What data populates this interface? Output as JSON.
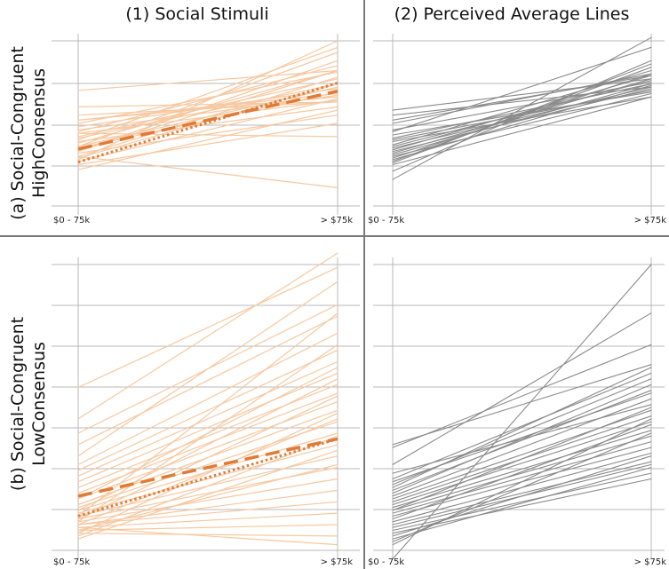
{
  "column_titles": [
    "(1) Social Stimuli",
    "(2) Perceived Average Lines"
  ],
  "row_titles": [
    [
      "(a) Social-Congruent",
      "HighConsensus"
    ],
    [
      "(b) Social-Congruent",
      "LowConsensus"
    ]
  ],
  "x_tick_labels": [
    "$0 - 75k",
    "> $75k"
  ],
  "colors": {
    "stimulus_line": "#f6c8a0",
    "mean_line": "#e07b36",
    "perceived_line": "#8a8a8a",
    "grid": "#b8b8b8",
    "divider": "#7a7a7a"
  },
  "chart_data": [
    {
      "panel": "a1",
      "type": "line",
      "x": [
        "$0 - 75k",
        "> $75k"
      ],
      "ylim": [
        0,
        1
      ],
      "lines": [
        [
          0.52,
          0.66
        ],
        [
          0.45,
          0.85
        ],
        [
          0.33,
          0.88
        ],
        [
          0.38,
          0.82
        ],
        [
          0.41,
          0.74
        ],
        [
          0.48,
          0.71
        ],
        [
          0.55,
          0.63
        ],
        [
          0.6,
          0.63
        ],
        [
          0.3,
          0.78
        ],
        [
          0.35,
          0.69
        ],
        [
          0.42,
          0.77
        ],
        [
          0.5,
          0.81
        ],
        [
          0.27,
          0.65
        ],
        [
          0.39,
          0.6
        ],
        [
          0.46,
          0.67
        ],
        [
          0.36,
          0.72
        ],
        [
          0.44,
          0.64
        ],
        [
          0.29,
          0.74
        ],
        [
          0.7,
          0.82
        ],
        [
          0.32,
          0.55
        ],
        [
          0.28,
          1.0
        ],
        [
          0.36,
          0.93
        ],
        [
          0.4,
          0.96
        ],
        [
          0.22,
          0.58
        ],
        [
          0.44,
          0.42
        ],
        [
          0.3,
          0.11
        ],
        [
          0.25,
          0.5
        ],
        [
          0.52,
          0.68
        ],
        [
          0.33,
          0.82
        ]
      ],
      "mean_dashed": [
        0.345,
        0.695
      ],
      "mean_dotted": [
        0.265,
        0.745
      ]
    },
    {
      "panel": "a2",
      "type": "line",
      "x": [
        "$0 - 75k",
        "> $75k"
      ],
      "ylim": [
        0,
        1
      ],
      "lines": [
        [
          0.58,
          0.77
        ],
        [
          0.55,
          0.72
        ],
        [
          0.5,
          0.8
        ],
        [
          0.46,
          0.75
        ],
        [
          0.43,
          0.69
        ],
        [
          0.41,
          0.74
        ],
        [
          0.39,
          0.66
        ],
        [
          0.37,
          0.82
        ],
        [
          0.36,
          0.76
        ],
        [
          0.35,
          0.72
        ],
        [
          0.34,
          0.79
        ],
        [
          0.33,
          0.71
        ],
        [
          0.32,
          0.77
        ],
        [
          0.31,
          0.74
        ],
        [
          0.3,
          0.68
        ],
        [
          0.29,
          0.8
        ],
        [
          0.28,
          0.73
        ],
        [
          0.27,
          0.84
        ],
        [
          0.26,
          0.86
        ],
        [
          0.25,
          0.66
        ],
        [
          0.21,
          0.88
        ],
        [
          0.45,
          0.96
        ],
        [
          0.16,
          1.02
        ],
        [
          0.52,
          0.79
        ],
        [
          0.4,
          0.7
        ]
      ]
    },
    {
      "panel": "b1",
      "type": "line",
      "x": [
        "$0 - 75k",
        "> $75k"
      ],
      "ylim": [
        0,
        1
      ],
      "lines": [
        [
          0.57,
          0.99
        ],
        [
          0.46,
          1.04
        ],
        [
          0.41,
          0.86
        ],
        [
          0.37,
          0.82
        ],
        [
          0.33,
          0.94
        ],
        [
          0.3,
          0.76
        ],
        [
          0.28,
          0.7
        ],
        [
          0.26,
          0.66
        ],
        [
          0.24,
          0.62
        ],
        [
          0.22,
          0.58
        ],
        [
          0.2,
          0.55
        ],
        [
          0.18,
          0.52
        ],
        [
          0.16,
          0.49
        ],
        [
          0.15,
          0.45
        ],
        [
          0.14,
          0.41
        ],
        [
          0.13,
          0.37
        ],
        [
          0.12,
          0.33
        ],
        [
          0.11,
          0.29
        ],
        [
          0.1,
          0.25
        ],
        [
          0.09,
          0.21
        ],
        [
          0.09,
          0.17
        ],
        [
          0.08,
          0.13
        ],
        [
          0.07,
          0.09
        ],
        [
          0.06,
          0.05
        ],
        [
          0.08,
          0.02
        ],
        [
          0.1,
          0.72
        ],
        [
          0.12,
          0.83
        ],
        [
          0.05,
          0.4
        ],
        [
          0.07,
          0.3
        ],
        [
          0.09,
          0.46
        ],
        [
          0.11,
          0.54
        ],
        [
          0.14,
          0.6
        ],
        [
          0.18,
          0.64
        ],
        [
          0.04,
          0.35
        ],
        [
          0.06,
          0.48
        ]
      ],
      "mean_dashed": [
        0.19,
        0.39
      ],
      "mean_dotted": [
        0.12,
        0.39
      ]
    },
    {
      "panel": "b2",
      "type": "line",
      "x": [
        "$0 - 75k",
        "> $75k"
      ],
      "ylim": [
        0,
        1
      ],
      "lines": [
        [
          0.37,
          0.65
        ],
        [
          0.36,
          0.72
        ],
        [
          0.3,
          0.83
        ],
        [
          0.27,
          0.51
        ],
        [
          0.25,
          0.62
        ],
        [
          0.23,
          0.6
        ],
        [
          0.22,
          0.64
        ],
        [
          0.21,
          0.56
        ],
        [
          0.19,
          0.53
        ],
        [
          0.18,
          0.49
        ],
        [
          0.17,
          0.47
        ],
        [
          0.16,
          0.45
        ],
        [
          0.15,
          0.42
        ],
        [
          0.14,
          0.4
        ],
        [
          0.13,
          0.38
        ],
        [
          0.12,
          0.36
        ],
        [
          0.11,
          0.44
        ],
        [
          0.1,
          0.34
        ],
        [
          0.09,
          0.31
        ],
        [
          0.08,
          0.3
        ],
        [
          0.07,
          0.27
        ],
        [
          0.06,
          0.25
        ],
        [
          0.05,
          0.33
        ],
        [
          0.04,
          0.29
        ],
        [
          0.03,
          0.41
        ],
        [
          0.02,
          0.46
        ],
        [
          -0.03,
          1.0
        ],
        [
          0.2,
          0.58
        ],
        [
          0.24,
          0.55
        ],
        [
          0.14,
          0.5
        ]
      ]
    }
  ]
}
